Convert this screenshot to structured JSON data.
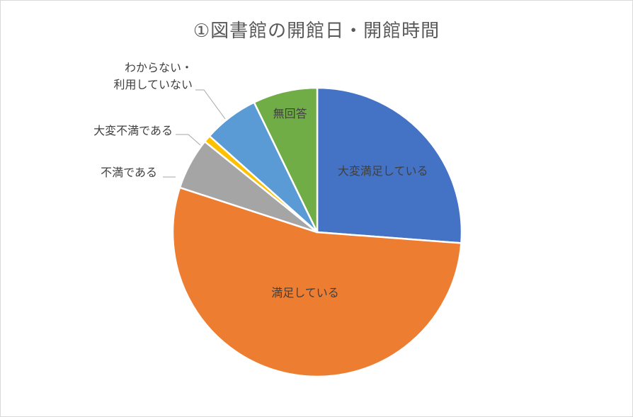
{
  "chart_data": {
    "type": "pie",
    "title": "①図書館の開館日・開館時間",
    "categories": [
      "大変満足している",
      "満足している",
      "不満である",
      "大変不満である",
      "わからない・利用していない",
      "無回答"
    ],
    "label_lines": [
      [
        "大変満足している"
      ],
      [
        "満足している"
      ],
      [
        "不満である"
      ],
      [
        "大変不満である"
      ],
      [
        "わからない・",
        "利用していない"
      ],
      [
        "無回答"
      ]
    ],
    "values": [
      26.2,
      53.8,
      5.8,
      0.8,
      6.2,
      7.2
    ],
    "colors": [
      "#4472C4",
      "#ED7D31",
      "#A5A5A5",
      "#FFC000",
      "#5B9BD5",
      "#70AD47"
    ],
    "start_angle_deg": 0,
    "direction": "clockwise",
    "legend": "none"
  }
}
